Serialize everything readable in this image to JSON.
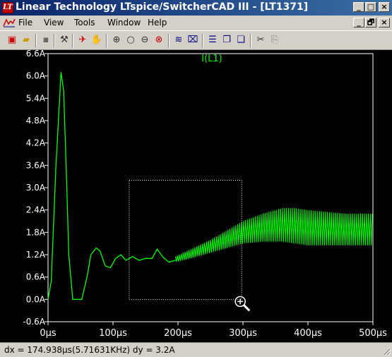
{
  "window": {
    "title": "Linear Technology LTspice/SwitcherCAD III - [LT1371]",
    "minimize_label": "_",
    "maximize_label": "□",
    "close_label": "×"
  },
  "menu": {
    "items": [
      {
        "label": "File",
        "name": "menu-file"
      },
      {
        "label": "View",
        "name": "menu-view"
      },
      {
        "label": "Tools",
        "name": "menu-tools"
      },
      {
        "label": "Window",
        "name": "menu-window"
      },
      {
        "label": "Help",
        "name": "menu-help"
      }
    ],
    "mdi_minimize_label": "_",
    "mdi_restore_label": "🗗",
    "mdi_close_label": "×"
  },
  "toolbar": {
    "icons": [
      "new-schematic-icon",
      "open-folder-icon",
      "save-icon",
      "control-panel-icon",
      "run-icon",
      "halt-icon",
      "zoom-in-icon",
      "zoom-fit-icon",
      "zoom-out-icon",
      "cancel-zoom-icon",
      "autorange-icon",
      "pick-visible-icon",
      "tile-horizontal-icon",
      "cascade-icon",
      "close-windows-icon",
      "cut-icon",
      "copy-icon"
    ]
  },
  "chart_data": {
    "type": "line",
    "title": "I(L1)",
    "xlabel": "",
    "ylabel": "",
    "x_unit": "µs",
    "y_unit": "A",
    "xlim": [
      0,
      500
    ],
    "ylim": [
      -0.6,
      6.6
    ],
    "x_ticks": [
      0,
      100,
      200,
      300,
      400,
      500
    ],
    "x_tick_labels": [
      "0µs",
      "100µs",
      "200µs",
      "300µs",
      "400µs",
      "500µs"
    ],
    "y_ticks": [
      -0.6,
      0.0,
      0.6,
      1.2,
      1.8,
      2.4,
      3.0,
      3.6,
      4.2,
      4.8,
      5.4,
      6.0,
      6.6
    ],
    "y_tick_labels": [
      "-0.6A",
      "0.0A",
      "0.6A",
      "1.2A",
      "1.8A",
      "2.4A",
      "3.0A",
      "3.6A",
      "4.2A",
      "4.8A",
      "5.4A",
      "6.0A",
      "6.6A"
    ],
    "grid": false,
    "series": [
      {
        "name": "I(L1)",
        "color": "#00ff00",
        "x": [
          0,
          5,
          12,
          20,
          24,
          28,
          32,
          38,
          45,
          52,
          60,
          66,
          74,
          80,
          88,
          96,
          104,
          112,
          120,
          130,
          140,
          150,
          160,
          168,
          176,
          186,
          196
        ],
        "y": [
          0.0,
          0.5,
          3.5,
          6.1,
          5.6,
          3.5,
          1.2,
          0.0,
          0.0,
          0.0,
          0.6,
          1.2,
          1.38,
          1.3,
          0.9,
          0.85,
          1.1,
          1.2,
          1.05,
          1.15,
          1.05,
          1.1,
          1.1,
          1.35,
          1.15,
          1.0,
          1.05
        ]
      }
    ],
    "ripple_envelope": {
      "x": [
        196,
        220,
        250,
        280,
        300,
        330,
        360,
        380,
        400,
        430,
        460,
        500
      ],
      "upper": [
        1.15,
        1.35,
        1.6,
        1.9,
        2.1,
        2.3,
        2.45,
        2.45,
        2.4,
        2.35,
        2.3,
        2.3
      ],
      "lower": [
        1.0,
        1.1,
        1.25,
        1.4,
        1.5,
        1.55,
        1.55,
        1.5,
        1.45,
        1.45,
        1.45,
        1.45
      ],
      "period": 3
    },
    "zoom_box": {
      "x0": 125,
      "x1": 298,
      "y0": 0.0,
      "y1": 3.2
    }
  },
  "status": {
    "text": "dx = 174.938µs(5.71631KHz)    dy = 3.2A"
  }
}
